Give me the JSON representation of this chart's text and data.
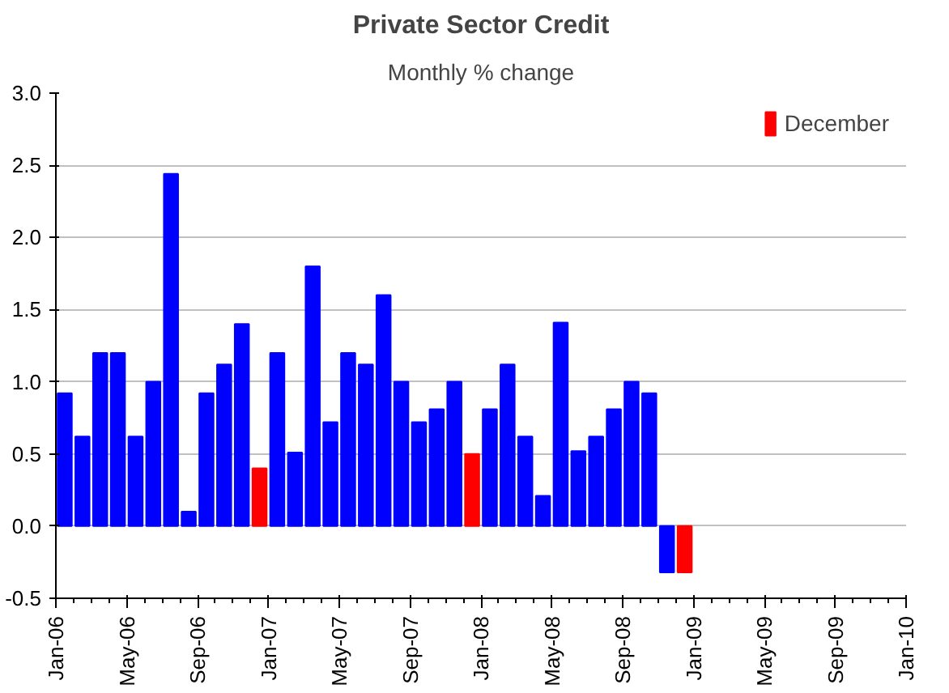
{
  "chart_data": {
    "type": "bar",
    "title": "Private Sector Credit",
    "subtitle": "Monthly % change",
    "x": [
      "2006-01",
      "2006-02",
      "2006-03",
      "2006-04",
      "2006-05",
      "2006-06",
      "2006-07",
      "2006-08",
      "2006-09",
      "2006-10",
      "2006-11",
      "2006-12",
      "2007-01",
      "2007-02",
      "2007-03",
      "2007-04",
      "2007-05",
      "2007-06",
      "2007-07",
      "2007-08",
      "2007-09",
      "2007-10",
      "2007-11",
      "2007-12",
      "2008-01",
      "2008-02",
      "2008-03",
      "2008-04",
      "2008-05",
      "2008-06",
      "2008-07",
      "2008-08",
      "2008-09",
      "2008-10",
      "2008-11",
      "2008-12"
    ],
    "series": [
      {
        "color": "#0000ff",
        "values": [
          0.92,
          0.62,
          1.2,
          1.2,
          0.62,
          1.0,
          2.44,
          0.1,
          0.92,
          1.12,
          1.4,
          null,
          1.2,
          0.51,
          1.8,
          0.72,
          1.2,
          1.12,
          1.6,
          1.0,
          0.72,
          0.81,
          1.0,
          null,
          0.81,
          1.12,
          0.62,
          0.21,
          1.41,
          0.52,
          0.62,
          0.81,
          1.0,
          0.92,
          -0.32,
          null
        ]
      },
      {
        "name": "December",
        "color": "#ff0000",
        "values": [
          null,
          null,
          null,
          null,
          null,
          null,
          null,
          null,
          null,
          null,
          null,
          0.4,
          null,
          null,
          null,
          null,
          null,
          null,
          null,
          null,
          null,
          null,
          null,
          0.5,
          null,
          null,
          null,
          null,
          null,
          null,
          null,
          null,
          null,
          null,
          null,
          -0.32
        ]
      }
    ],
    "xlim": [
      "2006-01",
      "2010-01"
    ],
    "xticks": [
      {
        "value": "2006-01",
        "label": "Jan-06"
      },
      {
        "value": "2006-05",
        "label": "May-06"
      },
      {
        "value": "2006-09",
        "label": "Sep-06"
      },
      {
        "value": "2007-01",
        "label": "Jan-07"
      },
      {
        "value": "2007-05",
        "label": "May-07"
      },
      {
        "value": "2007-09",
        "label": "Sep-07"
      },
      {
        "value": "2008-01",
        "label": "Jan-08"
      },
      {
        "value": "2008-05",
        "label": "May-08"
      },
      {
        "value": "2008-09",
        "label": "Sep-08"
      },
      {
        "value": "2009-01",
        "label": "Jan-09"
      },
      {
        "value": "2009-05",
        "label": "May-09"
      },
      {
        "value": "2009-09",
        "label": "Sep-09"
      },
      {
        "value": "2010-01",
        "label": "Jan-10"
      }
    ],
    "ylim": [
      -0.5,
      3.0
    ],
    "yticks": [
      {
        "value": -0.5,
        "label": "-0.5"
      },
      {
        "value": 0,
        "label": "0.0"
      },
      {
        "value": 0.5,
        "label": "0.5"
      },
      {
        "value": 1.0,
        "label": "1.0"
      },
      {
        "value": 1.5,
        "label": "1.5"
      },
      {
        "value": 2.0,
        "label": "2.0"
      },
      {
        "value": 2.5,
        "label": "2.5"
      },
      {
        "value": 3.0,
        "label": "3.0"
      }
    ],
    "grid": "y",
    "legend": "top right"
  }
}
